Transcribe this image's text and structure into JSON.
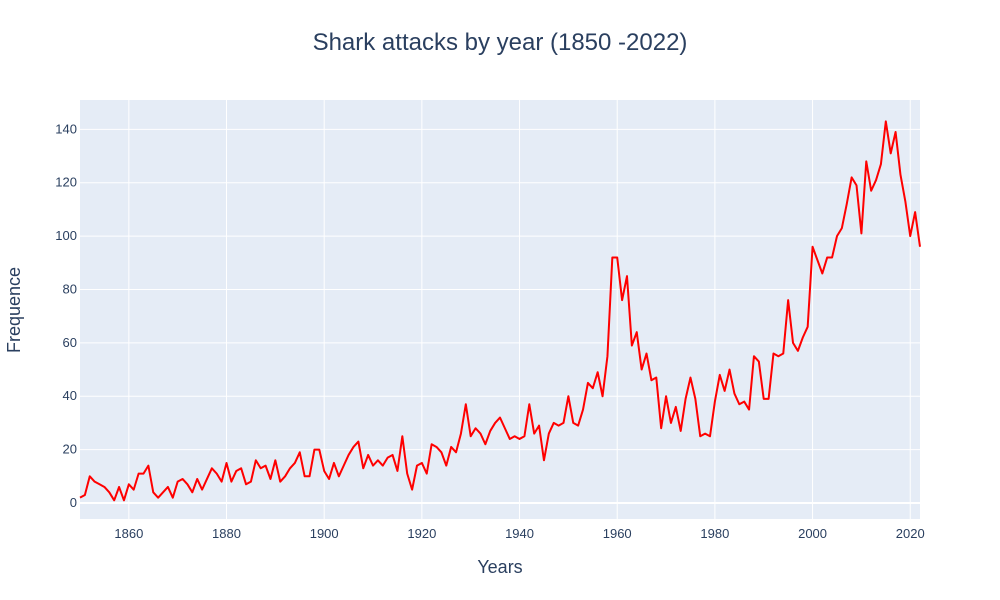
{
  "chart_data": {
    "type": "line",
    "title": "Shark attacks by year (1850 -2022)",
    "xlabel": "Years",
    "ylabel": "Frequence",
    "xlim": [
      1850,
      2022
    ],
    "ylim": [
      -6,
      151
    ],
    "x_ticks": [
      1860,
      1880,
      1900,
      1920,
      1940,
      1960,
      1980,
      2000,
      2020
    ],
    "y_ticks": [
      0,
      20,
      40,
      60,
      80,
      100,
      120,
      140
    ],
    "grid": true,
    "colors": {
      "line": "#ff0000",
      "plot_bg": "#e5ecf6",
      "grid": "#ffffff",
      "text": "#2a3f5f"
    },
    "series": [
      {
        "x": [
          1850,
          1851,
          1852,
          1853,
          1854,
          1855,
          1856,
          1857,
          1858,
          1859,
          1860,
          1861,
          1862,
          1863,
          1864,
          1865,
          1866,
          1867,
          1868,
          1869,
          1870,
          1871,
          1872,
          1873,
          1874,
          1875,
          1876,
          1877,
          1878,
          1879,
          1880,
          1881,
          1882,
          1883,
          1884,
          1885,
          1886,
          1887,
          1888,
          1889,
          1890,
          1891,
          1892,
          1893,
          1894,
          1895,
          1896,
          1897,
          1898,
          1899,
          1900,
          1901,
          1902,
          1903,
          1904,
          1905,
          1906,
          1907,
          1908,
          1909,
          1910,
          1911,
          1912,
          1913,
          1914,
          1915,
          1916,
          1917,
          1918,
          1919,
          1920,
          1921,
          1922,
          1923,
          1924,
          1925,
          1926,
          1927,
          1928,
          1929,
          1930,
          1931,
          1932,
          1933,
          1934,
          1935,
          1936,
          1937,
          1938,
          1939,
          1940,
          1941,
          1942,
          1943,
          1944,
          1945,
          1946,
          1947,
          1948,
          1949,
          1950,
          1951,
          1952,
          1953,
          1954,
          1955,
          1956,
          1957,
          1958,
          1959,
          1960,
          1961,
          1962,
          1963,
          1964,
          1965,
          1966,
          1967,
          1968,
          1969,
          1970,
          1971,
          1972,
          1973,
          1974,
          1975,
          1976,
          1977,
          1978,
          1979,
          1980,
          1981,
          1982,
          1983,
          1984,
          1985,
          1986,
          1987,
          1988,
          1989,
          1990,
          1991,
          1992,
          1993,
          1994,
          1995,
          1996,
          1997,
          1998,
          1999,
          2000,
          2001,
          2002,
          2003,
          2004,
          2005,
          2006,
          2007,
          2008,
          2009,
          2010,
          2011,
          2012,
          2013,
          2014,
          2015,
          2016,
          2017,
          2018,
          2019,
          2020,
          2021,
          2022
        ],
        "y": [
          2,
          3,
          10,
          8,
          7,
          6,
          4,
          1,
          6,
          1,
          7,
          5,
          11,
          11,
          14,
          4,
          2,
          4,
          6,
          2,
          8,
          9,
          7,
          4,
          9,
          5,
          9,
          13,
          11,
          8,
          15,
          8,
          12,
          13,
          7,
          8,
          16,
          13,
          14,
          9,
          16,
          8,
          10,
          13,
          15,
          19,
          10,
          10,
          20,
          20,
          12,
          9,
          15,
          10,
          14,
          18,
          21,
          23,
          13,
          18,
          14,
          16,
          14,
          17,
          18,
          12,
          25,
          11,
          5,
          14,
          15,
          11,
          22,
          21,
          19,
          14,
          21,
          19,
          26,
          37,
          25,
          28,
          26,
          22,
          27,
          30,
          32,
          28,
          24,
          25,
          24,
          25,
          37,
          26,
          29,
          16,
          26,
          30,
          29,
          30,
          40,
          30,
          29,
          35,
          45,
          43,
          49,
          40,
          55,
          92,
          92,
          76,
          85,
          59,
          64,
          50,
          56,
          46,
          47,
          28,
          40,
          30,
          36,
          27,
          39,
          47,
          39,
          25,
          26,
          25,
          38,
          48,
          42,
          50,
          41,
          37,
          38,
          35,
          55,
          53,
          39,
          39,
          56,
          55,
          56,
          76,
          60,
          57,
          62,
          66,
          96,
          91,
          86,
          92,
          92,
          100,
          103,
          112,
          122,
          119,
          101,
          128,
          117,
          121,
          127,
          143,
          131,
          139,
          123,
          113,
          100,
          109,
          96
        ]
      }
    ]
  }
}
